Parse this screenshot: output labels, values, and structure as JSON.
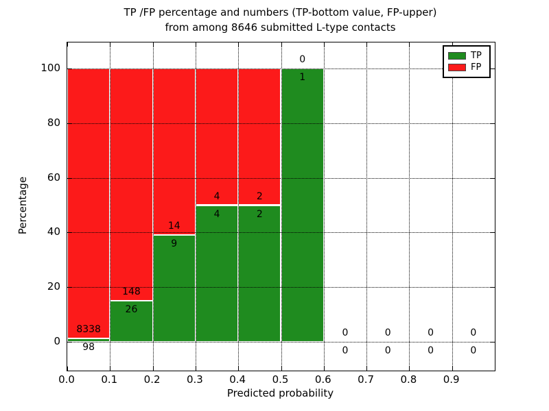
{
  "chart_data": {
    "type": "bar",
    "stacked": true,
    "title": "TP /FP percentage and numbers (TP-bottom value, FP-upper)",
    "subtitle": "from among 8646 submitted L-type contacts",
    "xlabel": "Predicted probability",
    "ylabel": "Percentage",
    "xlim": [
      0.0,
      1.0
    ],
    "ylim": [
      -10.5,
      109.5
    ],
    "x_ticks": [
      0.0,
      0.1,
      0.2,
      0.3,
      0.4,
      0.5,
      0.6,
      0.7,
      0.8,
      0.9
    ],
    "x_tick_labels": [
      "0.0",
      "0.1",
      "0.2",
      "0.3",
      "0.4",
      "0.5",
      "0.6",
      "0.7",
      "0.8",
      "0.9"
    ],
    "y_ticks": [
      0,
      20,
      40,
      60,
      80,
      100
    ],
    "y_tick_labels": [
      "0",
      "20",
      "40",
      "60",
      "80",
      "100"
    ],
    "grid": true,
    "bar_unit": "percent of bin total (TP bottom, FP top, stacked to 100)",
    "bins": [
      {
        "x_start": 0.0,
        "x_end": 0.1,
        "tp": 98,
        "fp": 8338
      },
      {
        "x_start": 0.1,
        "x_end": 0.2,
        "tp": 26,
        "fp": 148
      },
      {
        "x_start": 0.2,
        "x_end": 0.3,
        "tp": 9,
        "fp": 14
      },
      {
        "x_start": 0.3,
        "x_end": 0.4,
        "tp": 4,
        "fp": 4
      },
      {
        "x_start": 0.4,
        "x_end": 0.5,
        "tp": 2,
        "fp": 2
      },
      {
        "x_start": 0.5,
        "x_end": 0.6,
        "tp": 1,
        "fp": 0
      },
      {
        "x_start": 0.6,
        "x_end": 0.7,
        "tp": 0,
        "fp": 0
      },
      {
        "x_start": 0.7,
        "x_end": 0.8,
        "tp": 0,
        "fp": 0
      },
      {
        "x_start": 0.8,
        "x_end": 0.9,
        "tp": 0,
        "fp": 0
      },
      {
        "x_start": 0.9,
        "x_end": 1.0,
        "tp": 0,
        "fp": 0
      }
    ],
    "colors": {
      "tp": "#1f8b1f",
      "fp": "#fc1a1a",
      "bar_edge": "#ffffff",
      "grid": "#000000"
    },
    "legend": {
      "position": "upper right",
      "entries": [
        {
          "label": "TP",
          "color": "#1f8b1f"
        },
        {
          "label": "FP",
          "color": "#fc1a1a"
        }
      ]
    }
  }
}
